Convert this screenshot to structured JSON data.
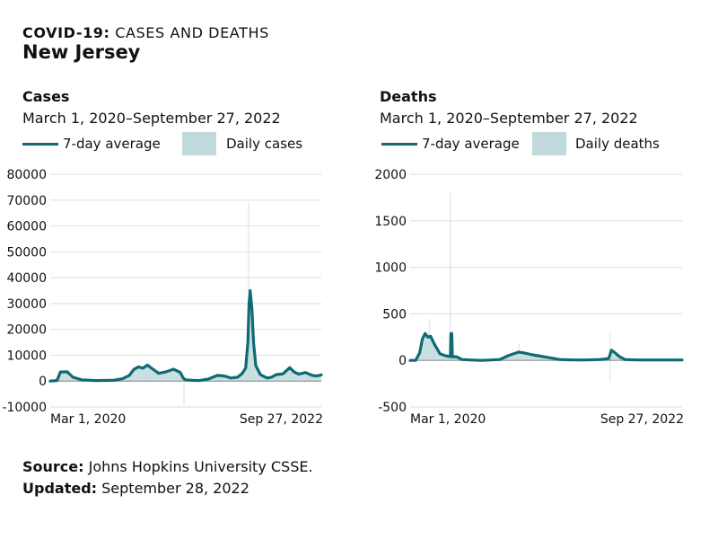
{
  "header": {
    "kicker_bold": "COVID-19:",
    "kicker_rest": " CASES AND DEATHS",
    "state": "New Jersey"
  },
  "colors": {
    "line": "#0e6b73",
    "fill": "#bfd9dc",
    "grid": "#e3e3e3",
    "zero": "#999999"
  },
  "footer": {
    "source_label": "Source:",
    "source_text": " Johns Hopkins University CSSE.",
    "updated_label": "Updated:",
    "updated_text": " September 28, 2022"
  },
  "chart_data": [
    {
      "type": "area",
      "title": "Cases",
      "subtitle": "March 1, 2020–September 27, 2022",
      "legend": {
        "line_label": "7-day average",
        "area_label": "Daily cases",
        "placement": "top-left"
      },
      "x_tick_labels": [
        "Mar 1, 2020",
        "Sep 27, 2022"
      ],
      "ylim": [
        -10000,
        80000
      ],
      "y_ticks": [
        -10000,
        0,
        10000,
        20000,
        30000,
        40000,
        50000,
        60000,
        70000,
        80000
      ],
      "grid": true,
      "x_fraction_note": "x values are fractions of the date range Mar 1, 2020 to Sep 27, 2022",
      "series": [
        {
          "name": "7-day average",
          "points": [
            [
              0,
              0
            ],
            [
              0.03,
              200
            ],
            [
              0.045,
              3500
            ],
            [
              0.075,
              3600
            ],
            [
              0.1,
              1500
            ],
            [
              0.14,
              500
            ],
            [
              0.2,
              200
            ],
            [
              0.28,
              300
            ],
            [
              0.32,
              900
            ],
            [
              0.35,
              2200
            ],
            [
              0.37,
              4500
            ],
            [
              0.39,
              5500
            ],
            [
              0.41,
              5000
            ],
            [
              0.43,
              6200
            ],
            [
              0.455,
              4600
            ],
            [
              0.48,
              3000
            ],
            [
              0.51,
              3500
            ],
            [
              0.545,
              4600
            ],
            [
              0.575,
              3400
            ],
            [
              0.59,
              1000
            ],
            [
              0.6,
              500
            ],
            [
              0.63,
              300
            ],
            [
              0.66,
              200
            ],
            [
              0.7,
              800
            ],
            [
              0.74,
              2200
            ],
            [
              0.77,
              2000
            ],
            [
              0.8,
              1200
            ],
            [
              0.83,
              1500
            ],
            [
              0.85,
              3000
            ],
            [
              0.865,
              5000
            ],
            [
              0.875,
              15000
            ],
            [
              0.88,
              30000
            ],
            [
              0.885,
              35000
            ],
            [
              0.893,
              28000
            ],
            [
              0.9,
              15000
            ],
            [
              0.91,
              6000
            ],
            [
              0.93,
              2500
            ],
            [
              0.96,
              1200
            ],
            [
              0.98,
              1500
            ],
            [
              1.0,
              2500
            ],
            [
              1.03,
              2800
            ],
            [
              1.06,
              5200
            ],
            [
              1.08,
              3500
            ],
            [
              1.1,
              2700
            ],
            [
              1.13,
              3300
            ],
            [
              1.16,
              2200
            ],
            [
              1.18,
              2000
            ],
            [
              1.2,
              2400
            ]
          ]
        },
        {
          "name": "Daily cases",
          "spikes": [
            [
              0.878,
              69000
            ],
            [
              0.44,
              7800
            ],
            [
              0.592,
              -9000
            ],
            [
              1.065,
              6500
            ]
          ]
        }
      ]
    },
    {
      "type": "area",
      "title": "Deaths",
      "subtitle": "March 1, 2020–September 27, 2022",
      "legend": {
        "line_label": "7-day average",
        "area_label": "Daily deaths",
        "placement": "top-left"
      },
      "x_tick_labels": [
        "Mar 1, 2020",
        "Sep 27, 2022"
      ],
      "ylim": [
        -500,
        2000
      ],
      "y_ticks": [
        -500,
        0,
        500,
        1000,
        1500,
        2000
      ],
      "grid": true,
      "series": [
        {
          "name": "7-day average",
          "points": [
            [
              0,
              0
            ],
            [
              0.02,
              0
            ],
            [
              0.035,
              80
            ],
            [
              0.045,
              230
            ],
            [
              0.055,
              290
            ],
            [
              0.065,
              250
            ],
            [
              0.075,
              260
            ],
            [
              0.09,
              170
            ],
            [
              0.11,
              70
            ],
            [
              0.13,
              50
            ],
            [
              0.148,
              40
            ],
            [
              0.15,
              290
            ],
            [
              0.153,
              290
            ],
            [
              0.155,
              40
            ],
            [
              0.17,
              40
            ],
            [
              0.19,
              10
            ],
            [
              0.22,
              5
            ],
            [
              0.26,
              0
            ],
            [
              0.3,
              5
            ],
            [
              0.33,
              10
            ],
            [
              0.36,
              50
            ],
            [
              0.38,
              70
            ],
            [
              0.4,
              90
            ],
            [
              0.42,
              80
            ],
            [
              0.45,
              60
            ],
            [
              0.48,
              45
            ],
            [
              0.51,
              30
            ],
            [
              0.55,
              10
            ],
            [
              0.6,
              5
            ],
            [
              0.65,
              5
            ],
            [
              0.7,
              10
            ],
            [
              0.73,
              20
            ],
            [
              0.735,
              60
            ],
            [
              0.74,
              110
            ],
            [
              0.75,
              90
            ],
            [
              0.77,
              40
            ],
            [
              0.79,
              10
            ],
            [
              0.83,
              5
            ],
            [
              0.9,
              5
            ],
            [
              1.0,
              5
            ]
          ]
        },
        {
          "name": "Daily deaths",
          "spikes": [
            [
              0.148,
              1800
            ],
            [
              0.07,
              450
            ],
            [
              0.4,
              180
            ],
            [
              0.735,
              300
            ],
            [
              0.735,
              -230
            ]
          ]
        }
      ]
    }
  ]
}
